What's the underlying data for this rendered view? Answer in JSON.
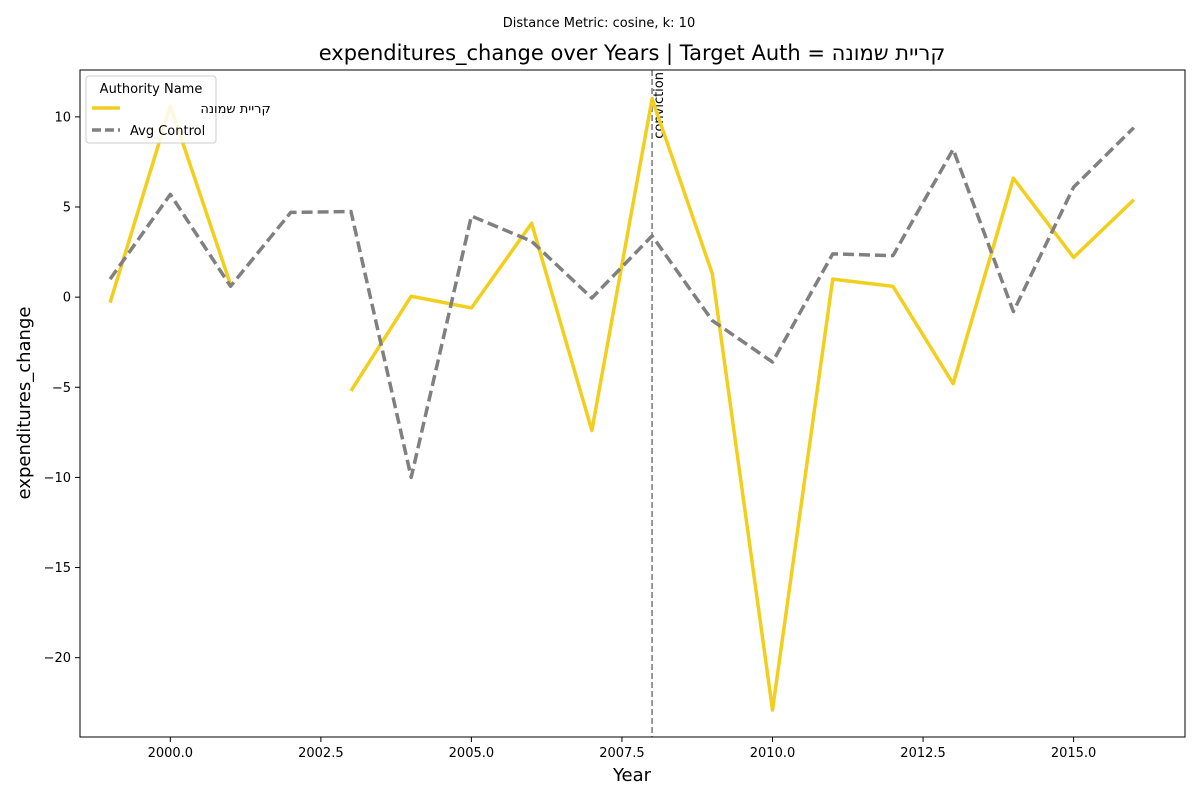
{
  "chart_data": {
    "type": "line",
    "suptitle": "Distance Metric: cosine, k: 10",
    "title": "expenditures_change over Years | Target Auth = קריית שמונה",
    "xlabel": "Year",
    "ylabel": "expenditures_change",
    "xlim": [
      1998.5,
      2016.85
    ],
    "ylim": [
      -24.4,
      12.6
    ],
    "xticks": [
      2000.0,
      2002.5,
      2005.0,
      2007.5,
      2010.0,
      2012.5,
      2015.0
    ],
    "xtick_labels": [
      "2000.0",
      "2002.5",
      "2005.0",
      "2007.5",
      "2010.0",
      "2012.5",
      "2015.0"
    ],
    "yticks": [
      10,
      5,
      0,
      -5,
      -10,
      -15,
      -20
    ],
    "ytick_labels": [
      "10",
      "5",
      "0",
      "−5",
      "−10",
      "−15",
      "−20"
    ],
    "grid": false,
    "legend": {
      "title": "Authority Name",
      "position": "top-left"
    },
    "vline": {
      "x": 2008,
      "label": "conviction",
      "color": "#808080"
    },
    "series": [
      {
        "name": "קריית שמונה",
        "color": "#f2cf1d",
        "dash": "solid",
        "x": [
          1999,
          2000,
          2001,
          2002,
          2003,
          2004,
          2005,
          2006,
          2007,
          2008,
          2009,
          2010,
          2011,
          2012,
          2013,
          2014,
          2015,
          2016
        ],
        "y": [
          -0.3,
          10.6,
          0.7,
          null,
          -5.2,
          0.05,
          -0.6,
          4.1,
          -7.4,
          11.0,
          1.3,
          -22.9,
          1.0,
          0.6,
          -4.8,
          6.6,
          2.2,
          5.4
        ]
      },
      {
        "name": "Avg Control",
        "color": "#808080",
        "dash": "dashed",
        "x": [
          1999,
          2000,
          2001,
          2002,
          2003,
          2004,
          2005,
          2006,
          2007,
          2008,
          2009,
          2010,
          2011,
          2012,
          2013,
          2014,
          2015,
          2016
        ],
        "y": [
          1.0,
          5.7,
          0.6,
          4.7,
          4.75,
          -10.0,
          4.5,
          3.1,
          -0.05,
          3.4,
          -1.3,
          -3.6,
          2.4,
          2.3,
          8.2,
          -0.8,
          6.1,
          9.4
        ]
      }
    ]
  }
}
